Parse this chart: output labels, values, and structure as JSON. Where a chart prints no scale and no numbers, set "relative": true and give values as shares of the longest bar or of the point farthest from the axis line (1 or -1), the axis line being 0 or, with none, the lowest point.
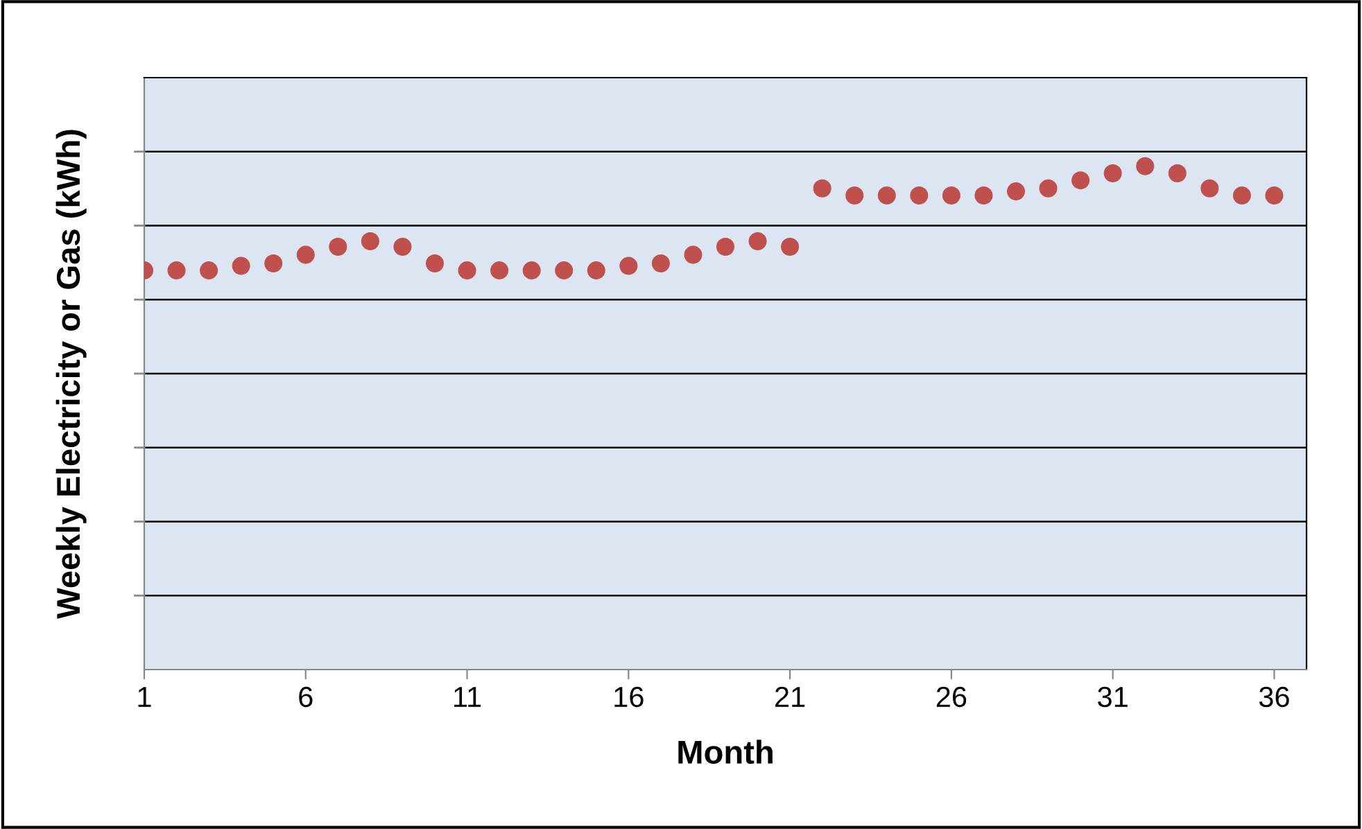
{
  "chart_data": {
    "type": "scatter",
    "xlabel": "Month",
    "ylabel": "Weekly Electricity or Gas (kWh)",
    "relative": true,
    "grid": "y",
    "marker": "circle",
    "x": [
      1,
      2,
      3,
      4,
      5,
      6,
      7,
      8,
      9,
      10,
      11,
      12,
      13,
      14,
      15,
      16,
      17,
      18,
      19,
      20,
      21,
      22,
      23,
      24,
      25,
      26,
      27,
      28,
      29,
      30,
      31,
      32,
      33,
      34,
      35,
      36
    ],
    "xlim": [
      1,
      37
    ],
    "xticks": [
      1,
      6,
      11,
      16,
      21,
      26,
      31,
      36
    ],
    "series": [
      {
        "color": "#c0504d",
        "values": [
          0.793,
          0.793,
          0.793,
          0.802,
          0.807,
          0.824,
          0.84,
          0.851,
          0.84,
          0.807,
          0.793,
          0.793,
          0.793,
          0.793,
          0.793,
          0.802,
          0.807,
          0.824,
          0.84,
          0.851,
          0.84,
          0.956,
          0.942,
          0.942,
          0.942,
          0.942,
          0.942,
          0.95,
          0.956,
          0.972,
          0.986,
          1,
          0.986,
          0.956,
          0.942,
          0.942
        ]
      }
    ]
  }
}
